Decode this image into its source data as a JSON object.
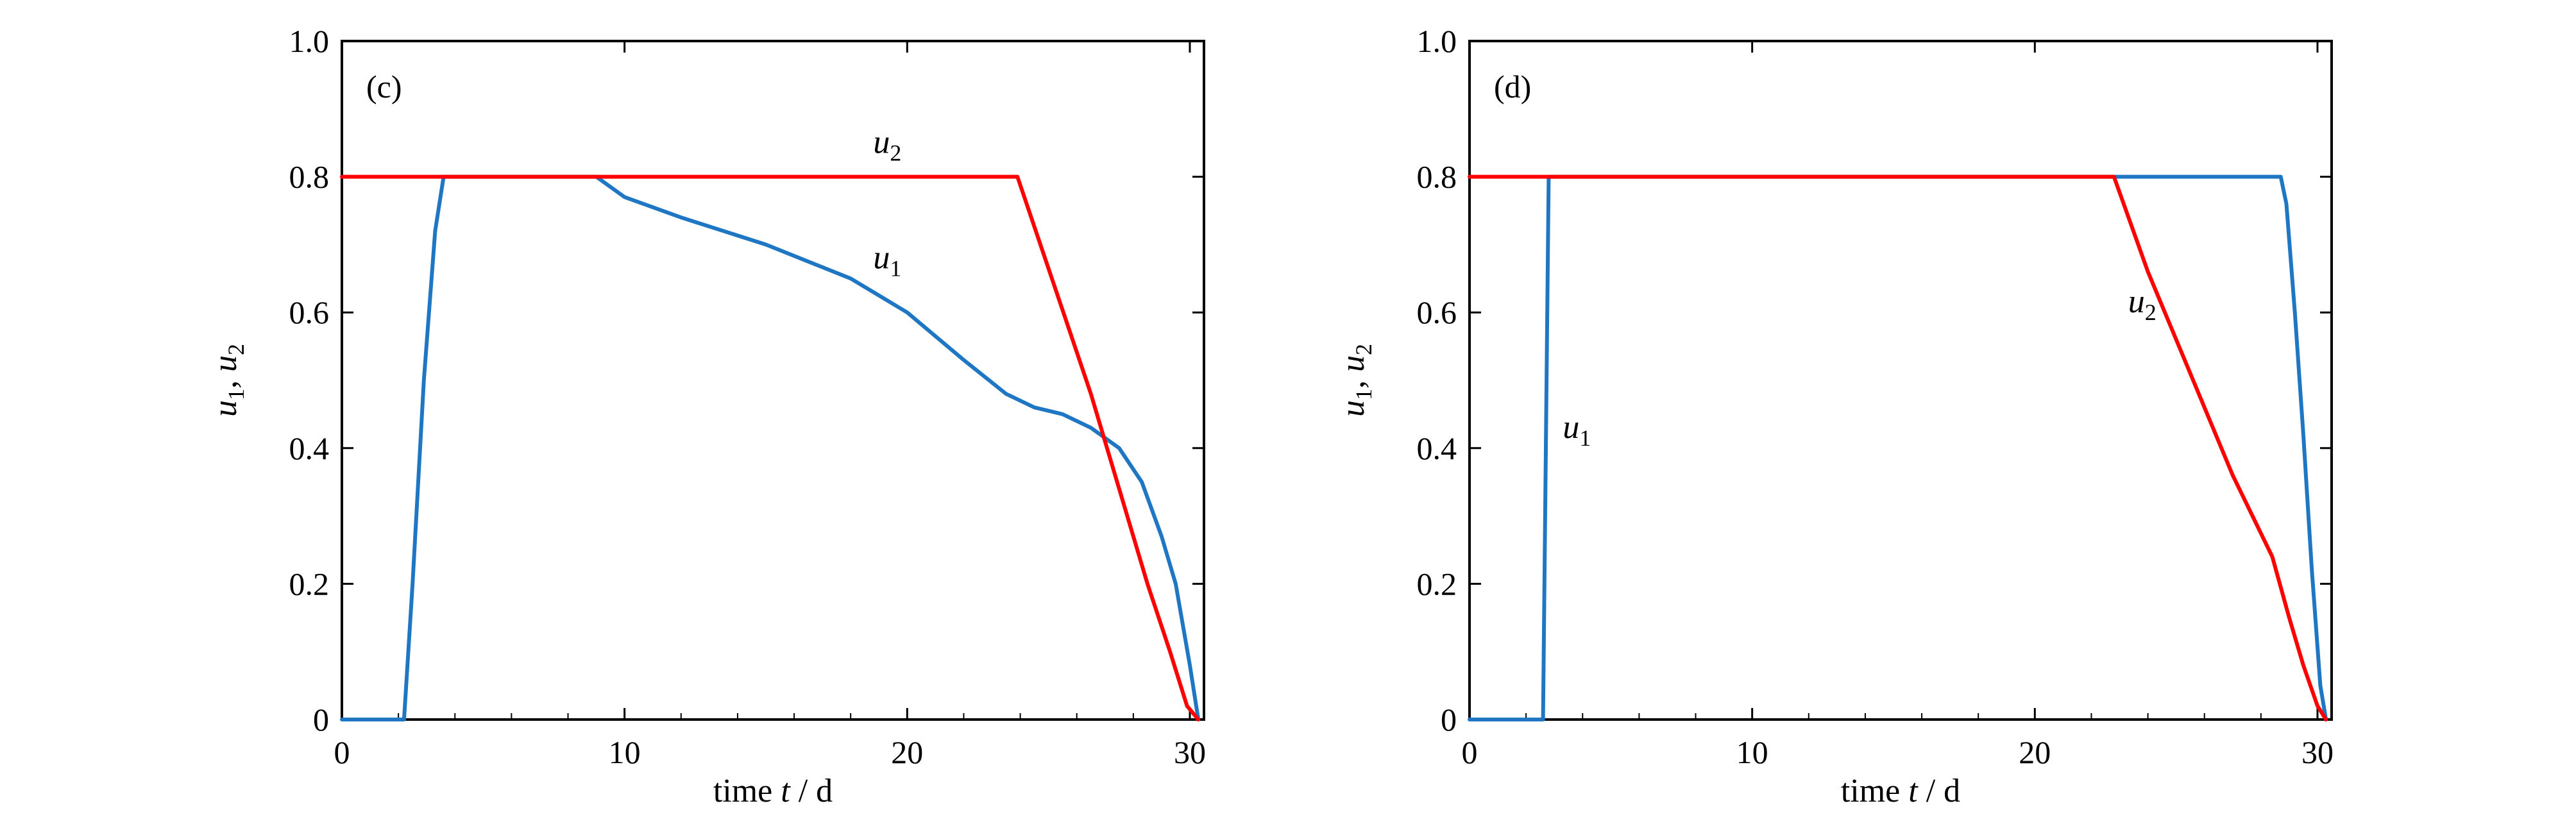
{
  "colors": {
    "u1": "#1f77c4",
    "u2": "#ff0000",
    "axis": "#000000"
  },
  "chart_data": [
    {
      "type": "line",
      "panel_label": "(c)",
      "xlabel": "time t / d",
      "ylabel": "u1, u2",
      "xlim": [
        0,
        30.5
      ],
      "ylim": [
        0,
        1.0
      ],
      "xticks": [
        0,
        10,
        20,
        30
      ],
      "yticks": [
        0,
        0.2,
        0.4,
        0.6,
        0.8,
        1.0
      ],
      "ytick_labels": [
        "0",
        "0.2",
        "0.4",
        "0.6",
        "0.8",
        "1.0"
      ],
      "grid": false,
      "series": [
        {
          "name": "u1",
          "color": "#1f77c4",
          "x": [
            0,
            2.2,
            2.5,
            2.9,
            3.3,
            3.6,
            9.0,
            10.0,
            12.0,
            15.0,
            18.0,
            20.0,
            22.0,
            23.5,
            24.5,
            25.5,
            26.5,
            27.5,
            28.3,
            29.0,
            29.5,
            30.0,
            30.3
          ],
          "y": [
            0,
            0,
            0.2,
            0.5,
            0.72,
            0.8,
            0.8,
            0.77,
            0.74,
            0.7,
            0.65,
            0.6,
            0.53,
            0.48,
            0.46,
            0.45,
            0.43,
            0.4,
            0.35,
            0.27,
            0.2,
            0.08,
            0.0
          ]
        },
        {
          "name": "u2",
          "color": "#ff0000",
          "x": [
            0,
            23.9,
            25.2,
            26.5,
            27.5,
            28.5,
            29.3,
            29.9,
            30.3
          ],
          "y": [
            0.8,
            0.8,
            0.64,
            0.48,
            0.34,
            0.2,
            0.1,
            0.02,
            0.0
          ]
        }
      ],
      "annotations": [
        {
          "text": "u",
          "sub": "2",
          "x": 18.8,
          "y": 0.835
        },
        {
          "text": "u",
          "sub": "1",
          "x": 18.8,
          "y": 0.665
        }
      ]
    },
    {
      "type": "line",
      "panel_label": "(d)",
      "xlabel": "time t / d",
      "ylabel": "u1, u2",
      "xlim": [
        0,
        30.5
      ],
      "ylim": [
        0,
        1.0
      ],
      "xticks": [
        0,
        10,
        20,
        30
      ],
      "yticks": [
        0,
        0.2,
        0.4,
        0.6,
        0.8,
        1.0
      ],
      "ytick_labels": [
        "0",
        "0.2",
        "0.4",
        "0.6",
        "0.8",
        "1.0"
      ],
      "grid": false,
      "series": [
        {
          "name": "u1",
          "color": "#1f77c4",
          "x": [
            0,
            2.6,
            2.7,
            2.8,
            28.7,
            28.9,
            29.2,
            29.5,
            29.8,
            30.1,
            30.3
          ],
          "y": [
            0,
            0,
            0.4,
            0.8,
            0.8,
            0.76,
            0.6,
            0.42,
            0.22,
            0.05,
            0.0
          ]
        },
        {
          "name": "u2",
          "color": "#ff0000",
          "x": [
            0,
            22.8,
            24.0,
            25.5,
            27.0,
            28.4,
            29.0,
            29.5,
            30.0,
            30.3
          ],
          "y": [
            0.8,
            0.8,
            0.66,
            0.51,
            0.36,
            0.24,
            0.15,
            0.08,
            0.02,
            0.0
          ]
        }
      ],
      "annotations": [
        {
          "text": "u",
          "sub": "2",
          "x": 23.3,
          "y": 0.6
        },
        {
          "text": "u",
          "sub": "1",
          "x": 3.3,
          "y": 0.415
        }
      ]
    }
  ]
}
